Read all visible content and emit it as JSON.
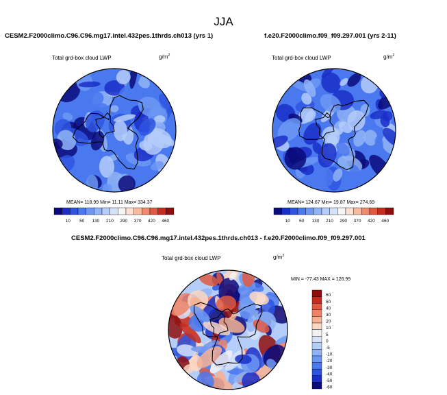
{
  "season": "JJA",
  "variable_label": "Total grd-box cloud LWP",
  "units": "g/m",
  "units_exp": "2",
  "colors": {
    "sequential": [
      "#0a0a7a",
      "#1a2fc8",
      "#2e55e0",
      "#4a78ef",
      "#6c98f3",
      "#90b4f6",
      "#b5cdf9",
      "#d6e2fa",
      "#f5f5f5",
      "#fde0d0",
      "#f9b99e",
      "#f08a6c",
      "#e05a42",
      "#c42c20",
      "#8e0e0e"
    ],
    "diverging": [
      "#0a0a7a",
      "#1a2fc8",
      "#2e55e0",
      "#4a78ef",
      "#6c98f3",
      "#90b4f6",
      "#b5cdf9",
      "#d6e2fa",
      "#f2f2f2",
      "#fbd7c2",
      "#f7b090",
      "#f08466",
      "#e05a42",
      "#c42c20",
      "#8e0e0e"
    ]
  },
  "chart_data": [
    {
      "type": "heatmap",
      "title": "CESM2.F2000climo.C96.C96.mg17.intel.432pes.1thrds.ch013 (yrs 1)",
      "subtitle": "Total grd-box cloud LWP",
      "projection": "north polar stereographic",
      "mean": "118.99",
      "min": "11.11",
      "max": "334.37",
      "mean_label": "MEAN=",
      "min_label": "Min=",
      "max_label": "Max=",
      "colorbar_ticks": [
        "10",
        "50",
        "130",
        "210",
        "290",
        "370",
        "420",
        "460"
      ]
    },
    {
      "type": "heatmap",
      "title": "f.e20.F2000climo.f09_f09.297.001 (yrs 2-11)",
      "subtitle": "Total grd-box cloud LWP",
      "projection": "north polar stereographic",
      "mean": "124.67",
      "min": "19.87",
      "max": "274.69",
      "mean_label": "MEAN=",
      "min_label": "Min=",
      "max_label": "Max=",
      "colorbar_ticks": [
        "10",
        "50",
        "130",
        "210",
        "290",
        "370",
        "420",
        "460"
      ]
    },
    {
      "type": "heatmap",
      "title": "CESM2.F2000climo.C96.C96.mg17.intel.432pes.1thrds.ch013 - f.e20.F2000climo.f09_f09.297.001",
      "subtitle": "Total grd-box cloud LWP",
      "projection": "north polar stereographic",
      "min_max_text": "MIN = -77.43 MAX = 126.99",
      "colorbar_ticks": [
        "60",
        "50",
        "40",
        "30",
        "20",
        "10",
        "5",
        "0",
        "-5",
        "-10",
        "-20",
        "-30",
        "-40",
        "-50",
        "-60"
      ]
    }
  ]
}
